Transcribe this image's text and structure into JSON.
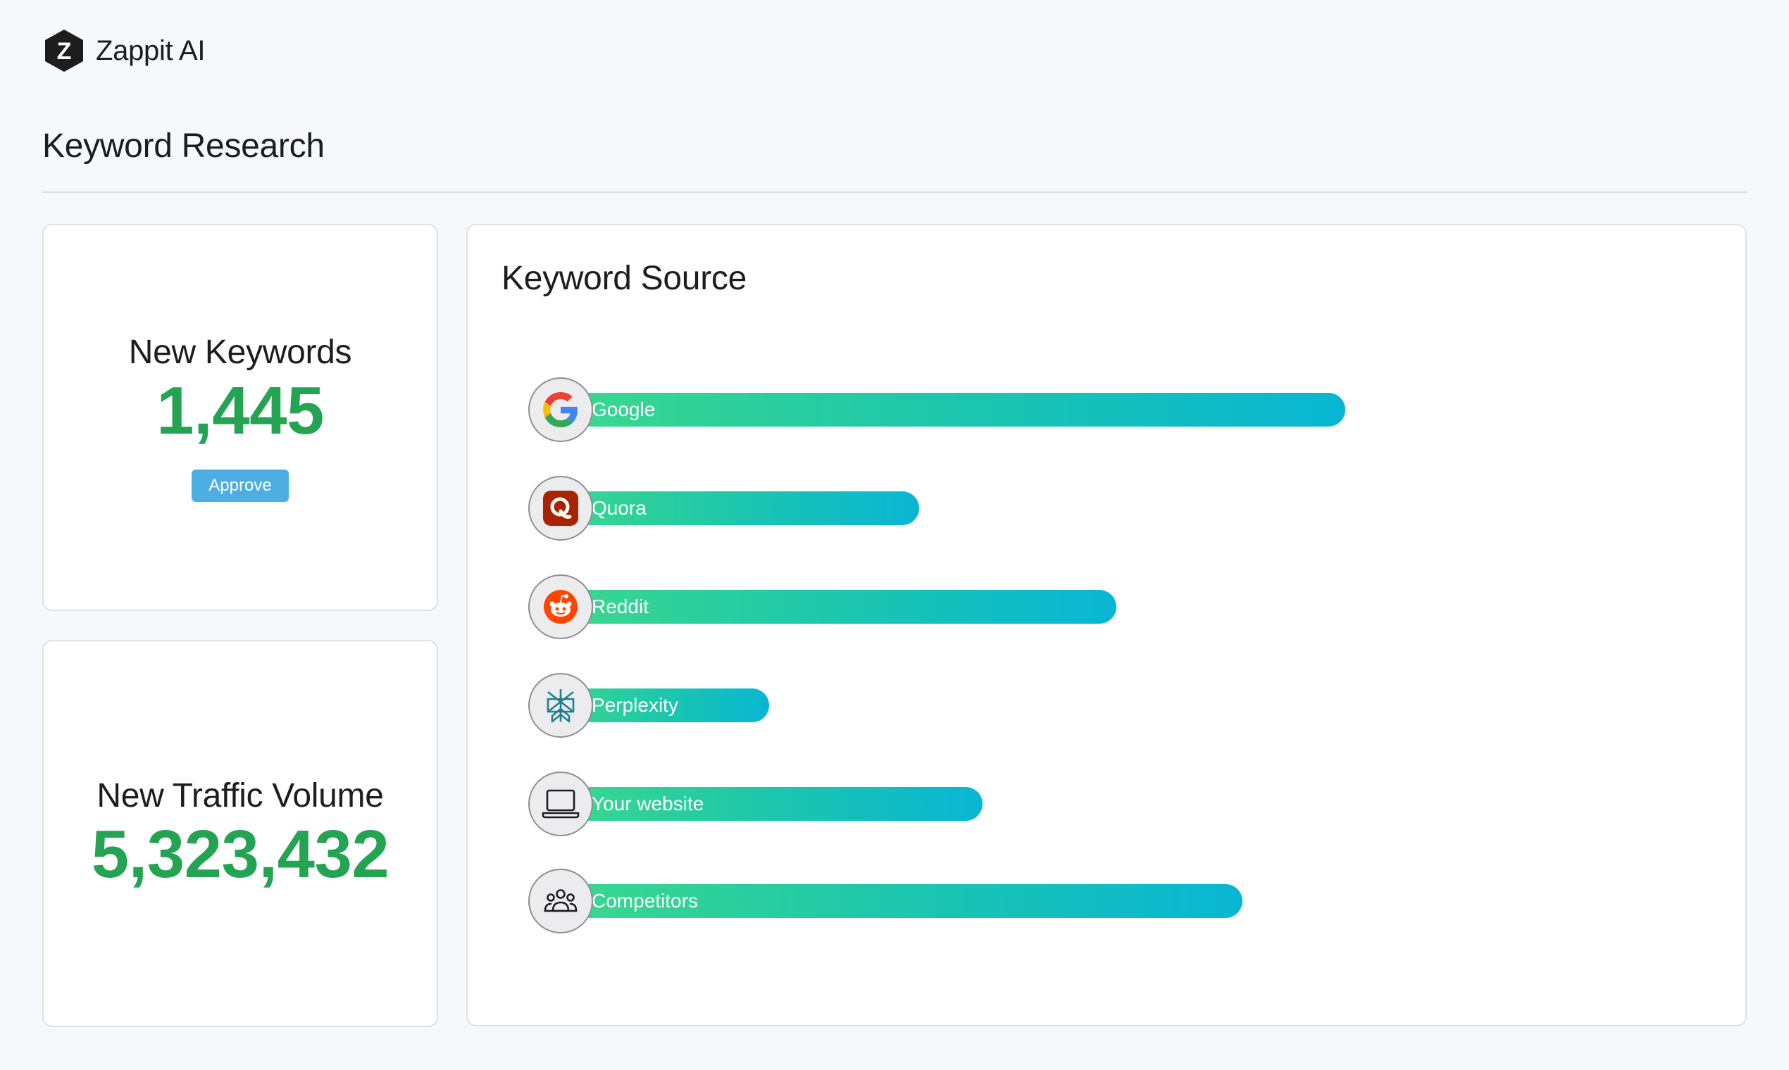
{
  "app": {
    "name": "Zappit AI",
    "logo_letter": "Z"
  },
  "page": {
    "title": "Keyword Research"
  },
  "stats": {
    "new_keywords": {
      "label": "New Keywords",
      "value": "1,445",
      "button_label": "Approve"
    },
    "new_traffic": {
      "label": "New Traffic Volume",
      "value": "5,323,432"
    }
  },
  "keyword_source": {
    "title": "Keyword Source",
    "sources": [
      {
        "label": "Google",
        "icon": "google-icon",
        "relative_length": 1.0
      },
      {
        "label": "Quora",
        "icon": "quora-icon",
        "relative_length": 0.46
      },
      {
        "label": "Reddit",
        "icon": "reddit-icon",
        "relative_length": 0.71
      },
      {
        "label": "Perplexity",
        "icon": "perplexity-icon",
        "relative_length": 0.27
      },
      {
        "label": "Your website",
        "icon": "laptop-icon",
        "relative_length": 0.54
      },
      {
        "label": "Competitors",
        "icon": "people-group-icon",
        "relative_length": 0.87
      }
    ]
  },
  "colors": {
    "accent_green": "#24a353",
    "button_blue": "#4daee4",
    "bar_start": "#3bd88e",
    "bar_end": "#08b6d4"
  }
}
